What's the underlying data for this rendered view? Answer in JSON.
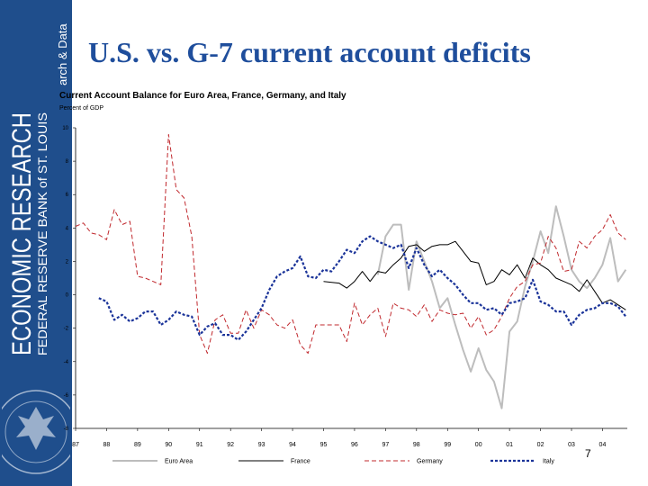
{
  "sidebar": {
    "line1": "ECONOMIC RESEARCH",
    "line2": "FEDERAL RESERVE BANK of ST. LOUIS",
    "line3": "arch & Data"
  },
  "slide": {
    "title": "U.S. vs. G-7 current account deficits",
    "page_number": "7"
  },
  "colors": {
    "sidebar": "#1f4e8c",
    "title": "#1f4e9c",
    "euro_area": "#bdbdbd",
    "france": "#000000",
    "germany": "#c0282d",
    "italy": "#1a3399"
  },
  "chart_data": {
    "type": "line",
    "title": "Current Account Balance for Euro Area, France, Germany, and Italy",
    "ylabel": "Percent of GDP",
    "xlabel": "",
    "x_ticks": [
      "87",
      "88",
      "89",
      "90",
      "91",
      "92",
      "93",
      "94",
      "95",
      "96",
      "97",
      "98",
      "99",
      "00",
      "01",
      "02",
      "03",
      "04"
    ],
    "y_ticks": [
      "10",
      "8",
      "6",
      "4",
      "2",
      "0",
      "-2",
      "-4",
      "-6",
      "-8"
    ],
    "xlim": [
      1987,
      2004.8
    ],
    "ylim": [
      -8,
      10
    ],
    "grid": false,
    "legend_position": "bottom",
    "series": [
      {
        "name": "Euro Area",
        "style": "solid",
        "points": [
          [
            1996.75,
            1.2
          ],
          [
            1997.0,
            3.5
          ],
          [
            1997.25,
            4.2
          ],
          [
            1997.5,
            4.2
          ],
          [
            1997.75,
            0.3
          ],
          [
            1998.0,
            3.2
          ],
          [
            1998.25,
            2.0
          ],
          [
            1998.5,
            0.8
          ],
          [
            1998.75,
            -0.8
          ],
          [
            1999.0,
            -0.2
          ],
          [
            1999.25,
            -1.8
          ],
          [
            1999.5,
            -3.3
          ],
          [
            1999.75,
            -4.6
          ],
          [
            2000.0,
            -3.2
          ],
          [
            2000.25,
            -4.5
          ],
          [
            2000.5,
            -5.2
          ],
          [
            2000.75,
            -6.8
          ],
          [
            2001.0,
            -2.2
          ],
          [
            2001.25,
            -1.6
          ],
          [
            2001.5,
            0.5
          ],
          [
            2001.75,
            2.0
          ],
          [
            2002.0,
            3.8
          ],
          [
            2002.25,
            2.5
          ],
          [
            2002.5,
            5.3
          ],
          [
            2002.75,
            3.5
          ],
          [
            2003.0,
            1.5
          ],
          [
            2003.25,
            0.8
          ],
          [
            2003.5,
            0.4
          ],
          [
            2003.75,
            1.0
          ],
          [
            2004.0,
            1.8
          ],
          [
            2004.25,
            3.4
          ],
          [
            2004.5,
            0.8
          ],
          [
            2004.75,
            1.5
          ]
        ]
      },
      {
        "name": "France",
        "style": "solid",
        "points": [
          [
            1995.0,
            0.8
          ],
          [
            1995.5,
            0.7
          ],
          [
            1995.75,
            0.4
          ],
          [
            1996.0,
            0.8
          ],
          [
            1996.25,
            1.4
          ],
          [
            1996.5,
            0.8
          ],
          [
            1996.75,
            1.4
          ],
          [
            1997.0,
            1.3
          ],
          [
            1997.25,
            1.8
          ],
          [
            1997.5,
            2.2
          ],
          [
            1997.75,
            2.9
          ],
          [
            1998.0,
            3.0
          ],
          [
            1998.25,
            2.6
          ],
          [
            1998.5,
            2.9
          ],
          [
            1998.75,
            3.0
          ],
          [
            1999.0,
            3.0
          ],
          [
            1999.25,
            3.2
          ],
          [
            1999.5,
            2.6
          ],
          [
            1999.75,
            2.0
          ],
          [
            2000.0,
            1.9
          ],
          [
            2000.25,
            0.6
          ],
          [
            2000.5,
            0.8
          ],
          [
            2000.75,
            1.5
          ],
          [
            2001.0,
            1.2
          ],
          [
            2001.25,
            1.8
          ],
          [
            2001.5,
            1.0
          ],
          [
            2001.75,
            2.2
          ],
          [
            2002.0,
            1.8
          ],
          [
            2002.25,
            1.5
          ],
          [
            2002.5,
            1.0
          ],
          [
            2002.75,
            0.8
          ],
          [
            2003.0,
            0.6
          ],
          [
            2003.25,
            0.2
          ],
          [
            2003.5,
            0.9
          ],
          [
            2003.75,
            0.2
          ],
          [
            2004.0,
            -0.5
          ],
          [
            2004.25,
            -0.3
          ],
          [
            2004.5,
            -0.6
          ],
          [
            2004.75,
            -0.9
          ]
        ]
      },
      {
        "name": "Germany",
        "style": "dashed",
        "points": [
          [
            1987.0,
            4.1
          ],
          [
            1987.25,
            4.3
          ],
          [
            1987.5,
            3.7
          ],
          [
            1987.75,
            3.6
          ],
          [
            1988.0,
            3.3
          ],
          [
            1988.25,
            5.1
          ],
          [
            1988.5,
            4.2
          ],
          [
            1988.75,
            4.4
          ],
          [
            1989.0,
            1.1
          ],
          [
            1989.25,
            1.0
          ],
          [
            1989.5,
            0.8
          ],
          [
            1989.75,
            0.6
          ],
          [
            1990.0,
            9.6
          ],
          [
            1990.25,
            6.3
          ],
          [
            1990.5,
            5.8
          ],
          [
            1990.75,
            3.5
          ],
          [
            1991.0,
            -2.4
          ],
          [
            1991.25,
            -3.5
          ],
          [
            1991.5,
            -1.5
          ],
          [
            1991.75,
            -1.2
          ],
          [
            1992.0,
            -2.3
          ],
          [
            1992.25,
            -2.3
          ],
          [
            1992.5,
            -0.9
          ],
          [
            1992.75,
            -2.0
          ],
          [
            1993.0,
            -0.9
          ],
          [
            1993.25,
            -1.2
          ],
          [
            1993.5,
            -1.8
          ],
          [
            1993.75,
            -2.0
          ],
          [
            1994.0,
            -1.5
          ],
          [
            1994.25,
            -3.0
          ],
          [
            1994.5,
            -3.5
          ],
          [
            1994.75,
            -1.8
          ],
          [
            1995.0,
            -1.8
          ],
          [
            1995.5,
            -1.8
          ],
          [
            1995.75,
            -2.8
          ],
          [
            1996.0,
            -0.5
          ],
          [
            1996.25,
            -1.8
          ],
          [
            1996.5,
            -1.2
          ],
          [
            1996.75,
            -0.8
          ],
          [
            1997.0,
            -2.5
          ],
          [
            1997.25,
            -0.5
          ],
          [
            1997.5,
            -0.8
          ],
          [
            1997.75,
            -0.9
          ],
          [
            1998.0,
            -1.3
          ],
          [
            1998.25,
            -0.6
          ],
          [
            1998.5,
            -1.6
          ],
          [
            1998.75,
            -0.9
          ],
          [
            1999.0,
            -1.1
          ],
          [
            1999.25,
            -1.2
          ],
          [
            1999.5,
            -1.1
          ],
          [
            1999.75,
            -2.0
          ],
          [
            2000.0,
            -1.3
          ],
          [
            2000.25,
            -2.4
          ],
          [
            2000.5,
            -2.1
          ],
          [
            2000.75,
            -1.3
          ],
          [
            2001.0,
            -0.2
          ],
          [
            2001.25,
            0.5
          ],
          [
            2001.5,
            0.8
          ],
          [
            2001.75,
            1.8
          ],
          [
            2002.0,
            1.9
          ],
          [
            2002.25,
            3.5
          ],
          [
            2002.5,
            2.8
          ],
          [
            2002.75,
            1.4
          ],
          [
            2003.0,
            1.5
          ],
          [
            2003.25,
            3.2
          ],
          [
            2003.5,
            2.8
          ],
          [
            2003.75,
            3.5
          ],
          [
            2004.0,
            3.9
          ],
          [
            2004.25,
            4.8
          ],
          [
            2004.5,
            3.7
          ],
          [
            2004.75,
            3.3
          ]
        ]
      },
      {
        "name": "Italy",
        "style": "dashed",
        "points": [
          [
            1987.75,
            -0.2
          ],
          [
            1988.0,
            -0.4
          ],
          [
            1988.25,
            -1.5
          ],
          [
            1988.5,
            -1.2
          ],
          [
            1988.75,
            -1.6
          ],
          [
            1989.0,
            -1.4
          ],
          [
            1989.25,
            -1.0
          ],
          [
            1989.5,
            -1.0
          ],
          [
            1989.75,
            -1.8
          ],
          [
            1990.0,
            -1.5
          ],
          [
            1990.25,
            -1.0
          ],
          [
            1990.5,
            -1.2
          ],
          [
            1990.75,
            -1.3
          ],
          [
            1991.0,
            -2.4
          ],
          [
            1991.25,
            -1.9
          ],
          [
            1991.5,
            -1.7
          ],
          [
            1991.75,
            -2.4
          ],
          [
            1992.0,
            -2.4
          ],
          [
            1992.25,
            -2.7
          ],
          [
            1992.5,
            -2.2
          ],
          [
            1992.75,
            -1.5
          ],
          [
            1993.0,
            -0.8
          ],
          [
            1993.25,
            0.3
          ],
          [
            1993.5,
            1.1
          ],
          [
            1993.75,
            1.4
          ],
          [
            1994.0,
            1.6
          ],
          [
            1994.25,
            2.3
          ],
          [
            1994.5,
            1.1
          ],
          [
            1994.75,
            1.0
          ],
          [
            1995.0,
            1.5
          ],
          [
            1995.25,
            1.4
          ],
          [
            1995.5,
            2.0
          ],
          [
            1995.75,
            2.7
          ],
          [
            1996.0,
            2.5
          ],
          [
            1996.25,
            3.2
          ],
          [
            1996.5,
            3.5
          ],
          [
            1996.75,
            3.2
          ],
          [
            1997.0,
            3.0
          ],
          [
            1997.25,
            2.8
          ],
          [
            1997.5,
            3.0
          ],
          [
            1997.75,
            1.6
          ],
          [
            1998.0,
            2.8
          ],
          [
            1998.25,
            1.8
          ],
          [
            1998.5,
            1.1
          ],
          [
            1998.75,
            1.5
          ],
          [
            1999.0,
            1.0
          ],
          [
            1999.25,
            0.6
          ],
          [
            1999.5,
            0.0
          ],
          [
            1999.75,
            -0.5
          ],
          [
            2000.0,
            -0.5
          ],
          [
            2000.25,
            -0.9
          ],
          [
            2000.5,
            -0.8
          ],
          [
            2000.75,
            -1.2
          ],
          [
            2001.0,
            -0.5
          ],
          [
            2001.25,
            -0.4
          ],
          [
            2001.5,
            -0.2
          ],
          [
            2001.75,
            0.9
          ],
          [
            2002.0,
            -0.4
          ],
          [
            2002.25,
            -0.6
          ],
          [
            2002.5,
            -1.0
          ],
          [
            2002.75,
            -1.0
          ],
          [
            2003.0,
            -1.8
          ],
          [
            2003.25,
            -1.2
          ],
          [
            2003.5,
            -0.9
          ],
          [
            2003.75,
            -0.8
          ],
          [
            2004.0,
            -0.5
          ],
          [
            2004.25,
            -0.5
          ],
          [
            2004.5,
            -0.7
          ],
          [
            2004.75,
            -1.3
          ]
        ]
      }
    ]
  }
}
